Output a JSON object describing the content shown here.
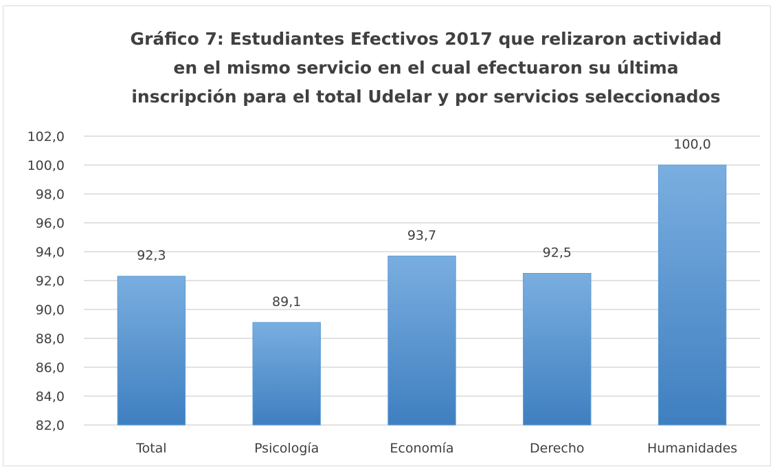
{
  "chart_data": {
    "type": "bar",
    "title_lines": [
      "Gráfico 7: Estudiantes Efectivos 2017 que relizaron actividad",
      "en el mismo servicio en el cual efectuaron su última",
      "inscripción para el total Udelar y por servicios seleccionados"
    ],
    "categories": [
      "Total",
      "Psicología",
      "Economía",
      "Derecho",
      "Humanidades"
    ],
    "values": [
      92.3,
      89.1,
      93.7,
      92.5,
      100.0
    ],
    "value_labels": [
      "92,3",
      "89,1",
      "93,7",
      "92,5",
      "100,0"
    ],
    "ylim": [
      82,
      102
    ],
    "yticks": [
      82,
      84,
      86,
      88,
      90,
      92,
      94,
      96,
      98,
      100,
      102
    ],
    "ytick_labels": [
      "82,0",
      "84,0",
      "86,0",
      "88,0",
      "90,0",
      "92,0",
      "94,0",
      "96,0",
      "98,0",
      "100,0",
      "102,0"
    ],
    "grid": true,
    "legend": "none",
    "bar_color": "#5b9bd5",
    "bar_color_light": "#7aaee0",
    "bar_color_dark": "#3f7fc0",
    "grid_color": "#d9d9d9",
    "text_color": "#404040"
  }
}
